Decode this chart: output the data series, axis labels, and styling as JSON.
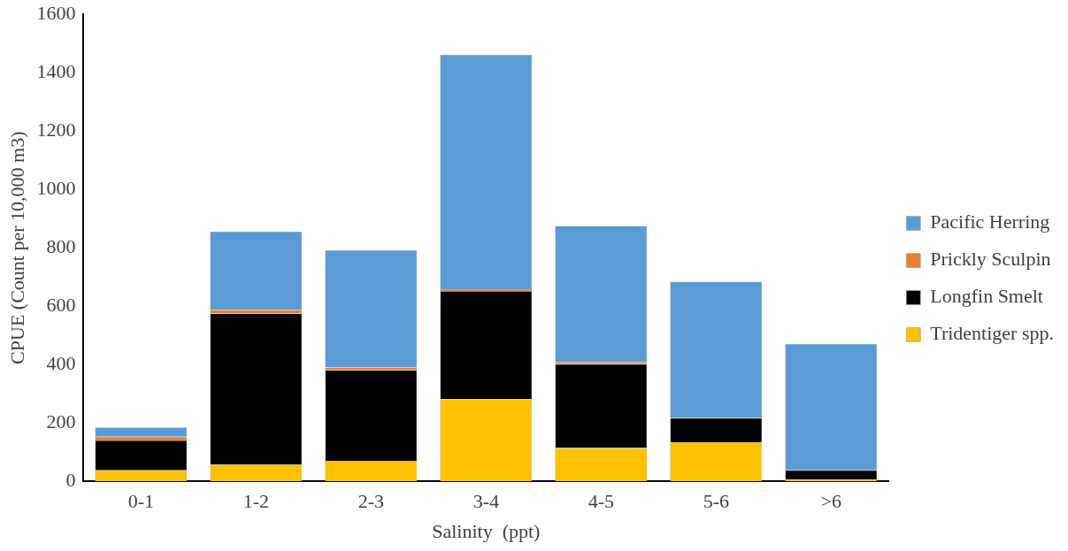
{
  "chart_data": {
    "type": "bar",
    "stacked": true,
    "xlabel": "Salinity  (ppt)",
    "ylabel": "CPUE (Count per 10,000 m3)",
    "categories": [
      "0-1",
      "1-2",
      "2-3",
      "3-4",
      "4-5",
      "5-6",
      ">6"
    ],
    "series": [
      {
        "name": "Tridentiger spp.",
        "color": "#ffc000",
        "values": [
          38,
          58,
          70,
          282,
          114,
          134,
          6
        ]
      },
      {
        "name": "Longfin Smelt",
        "color": "#000000",
        "values": [
          102,
          517,
          311,
          370,
          288,
          83,
          32
        ]
      },
      {
        "name": "Prickly Sculpin",
        "color": "#ed7d31",
        "values": [
          13,
          12,
          9,
          6,
          7,
          0,
          0
        ]
      },
      {
        "name": "Pacific Herring",
        "color": "#5b9bd5",
        "values": [
          32,
          269,
          402,
          804,
          466,
          467,
          433
        ]
      }
    ],
    "ylim": [
      0,
      1600
    ],
    "yticks": [
      0,
      200,
      400,
      600,
      800,
      1000,
      1200,
      1400,
      1600
    ],
    "grid": false,
    "legend": "right"
  }
}
